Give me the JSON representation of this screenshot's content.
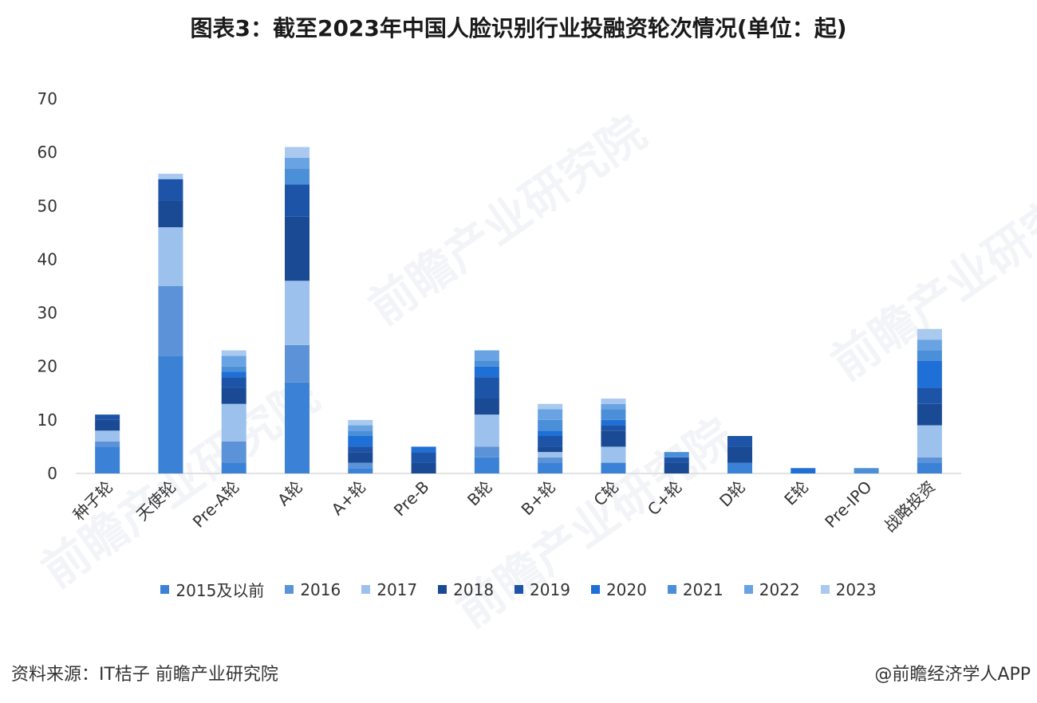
{
  "title": "图表3：截至2023年中国人脸识别行业投融资轮次情况(单位：起)",
  "source": "资料来源：IT桔子 前瞻产业研究院",
  "credit": "@前瞻经济学人APP",
  "watermark": "前瞻产业研究院",
  "chart_data": {
    "type": "bar",
    "stacked": true,
    "categories": [
      "种子轮",
      "天使轮",
      "Pre-A轮",
      "A轮",
      "A+轮",
      "Pre-B",
      "B轮",
      "B+轮",
      "C轮",
      "C+轮",
      "D轮",
      "E轮",
      "Pre-IPO",
      "战略投资"
    ],
    "ylim": [
      0,
      70
    ],
    "yticks": [
      0,
      10,
      20,
      30,
      40,
      50,
      60,
      70
    ],
    "grid": false,
    "legend_position": "bottom",
    "series": [
      {
        "name": "2015及以前",
        "color": "#3b82d6",
        "values": [
          5,
          22,
          2,
          17,
          1,
          0,
          3,
          2,
          2,
          0,
          2,
          0,
          0,
          2
        ]
      },
      {
        "name": "2016",
        "color": "#5c93d8",
        "values": [
          1,
          13,
          4,
          7,
          1,
          0,
          2,
          1,
          0,
          0,
          0,
          0,
          0,
          1
        ]
      },
      {
        "name": "2017",
        "color": "#9cc1ec",
        "values": [
          2,
          11,
          7,
          12,
          0,
          0,
          6,
          1,
          3,
          0,
          0,
          0,
          0,
          6
        ]
      },
      {
        "name": "2018",
        "color": "#1b4a94",
        "values": [
          2,
          5,
          3,
          12,
          2,
          2,
          3,
          1,
          3,
          2,
          3,
          0,
          0,
          4
        ]
      },
      {
        "name": "2019",
        "color": "#1d54a8",
        "values": [
          1,
          4,
          2,
          6,
          1,
          2,
          4,
          2,
          1,
          1,
          2,
          0,
          0,
          3
        ]
      },
      {
        "name": "2020",
        "color": "#1e6fd6",
        "values": [
          0,
          0,
          1,
          0,
          2,
          1,
          2,
          1,
          1,
          0,
          0,
          1,
          0,
          5
        ]
      },
      {
        "name": "2021",
        "color": "#4b8fd8",
        "values": [
          0,
          0,
          1,
          3,
          1,
          0,
          1,
          2,
          2,
          1,
          0,
          0,
          1,
          2
        ]
      },
      {
        "name": "2022",
        "color": "#6aa3e3",
        "values": [
          0,
          0,
          2,
          2,
          1,
          0,
          2,
          2,
          1,
          0,
          0,
          0,
          0,
          2
        ]
      },
      {
        "name": "2023",
        "color": "#a9c9ee",
        "values": [
          0,
          1,
          1,
          2,
          1,
          0,
          0,
          1,
          1,
          0,
          0,
          0,
          0,
          2
        ]
      }
    ]
  }
}
